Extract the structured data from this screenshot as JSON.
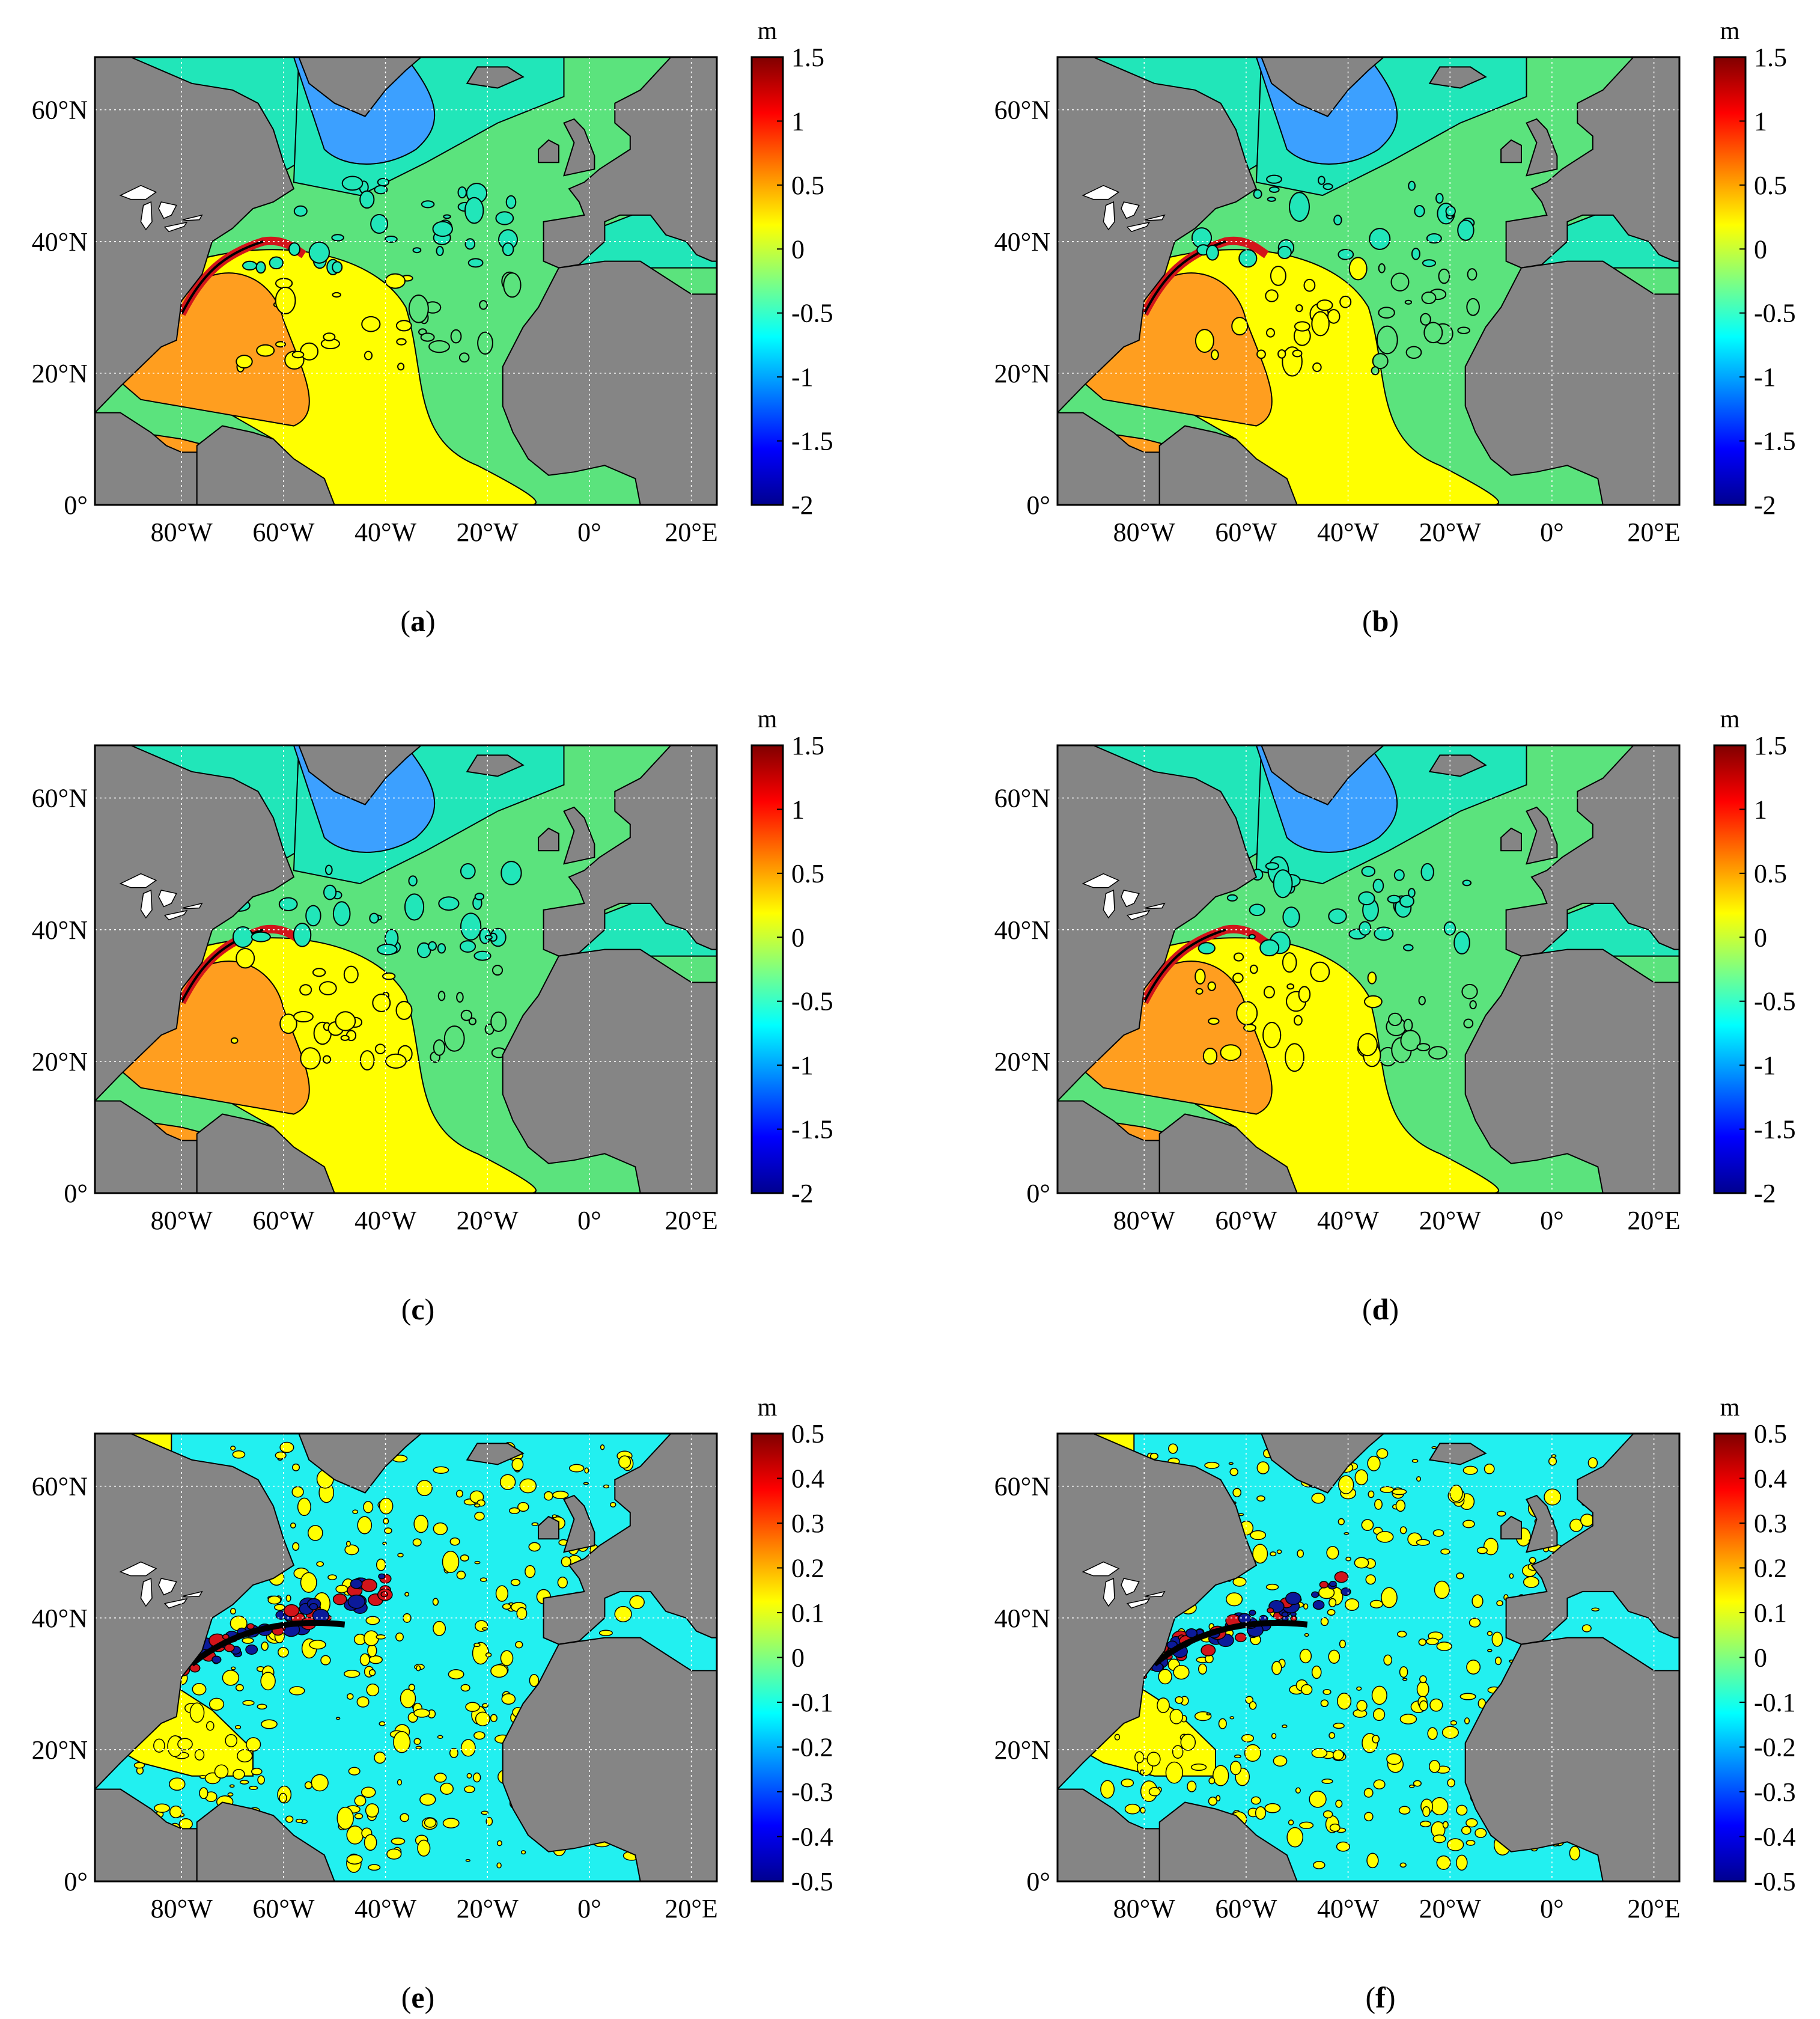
{
  "figure": {
    "panels": [
      {
        "label": "a",
        "scale": "wide"
      },
      {
        "label": "b",
        "scale": "wide"
      },
      {
        "label": "c",
        "scale": "wide"
      },
      {
        "label": "d",
        "scale": "wide"
      },
      {
        "label": "e",
        "scale": "narrow"
      },
      {
        "label": "f",
        "scale": "narrow"
      }
    ],
    "map_axes": {
      "lon_range": [
        -97,
        25
      ],
      "lat_range": [
        0,
        68
      ],
      "x_ticks": [
        {
          "lon": -80,
          "label": "80°W"
        },
        {
          "lon": -60,
          "label": "60°W"
        },
        {
          "lon": -40,
          "label": "40°W"
        },
        {
          "lon": -20,
          "label": "20°W"
        },
        {
          "lon": 0,
          "label": "0°"
        },
        {
          "lon": 20,
          "label": "20°E"
        }
      ],
      "y_ticks": [
        {
          "lat": 0,
          "label": "0°"
        },
        {
          "lat": 20,
          "label": "20°N"
        },
        {
          "lat": 40,
          "label": "40°N"
        },
        {
          "lat": 60,
          "label": "60°N"
        }
      ],
      "grid": "dotted"
    },
    "colorbars": {
      "wide": {
        "unit": "m",
        "range": [
          -2,
          1.5
        ],
        "ticks": [
          "1.5",
          "1",
          "0.5",
          "0",
          "-0.5",
          "-1",
          "-1.5",
          "-2"
        ]
      },
      "narrow": {
        "unit": "m",
        "range": [
          -0.5,
          0.5
        ],
        "ticks": [
          "0.5",
          "0.4",
          "0.3",
          "0.2",
          "0.1",
          "0",
          "-0.1",
          "-0.2",
          "-0.3",
          "-0.4",
          "-0.5"
        ]
      }
    },
    "colors": {
      "land": "#858585",
      "lakes": "#ffffff",
      "jet": [
        "#00008f",
        "#0000ff",
        "#0080ff",
        "#00ffff",
        "#80ff80",
        "#ffff00",
        "#ff8000",
        "#ff0000",
        "#800000"
      ],
      "wide_fill": {
        "subpolar": "#3ca0ff",
        "north": "#21e6b9",
        "mid": "#5be37d",
        "subtropic": "#ffff00",
        "west": "#ff9e1f",
        "red": "#d2141a"
      },
      "narrow_fill": {
        "base": "#22f0f0",
        "pos": "#ffff00",
        "strong_neg": "#0b1a9a",
        "strong_pos": "#d2141a"
      }
    }
  }
}
